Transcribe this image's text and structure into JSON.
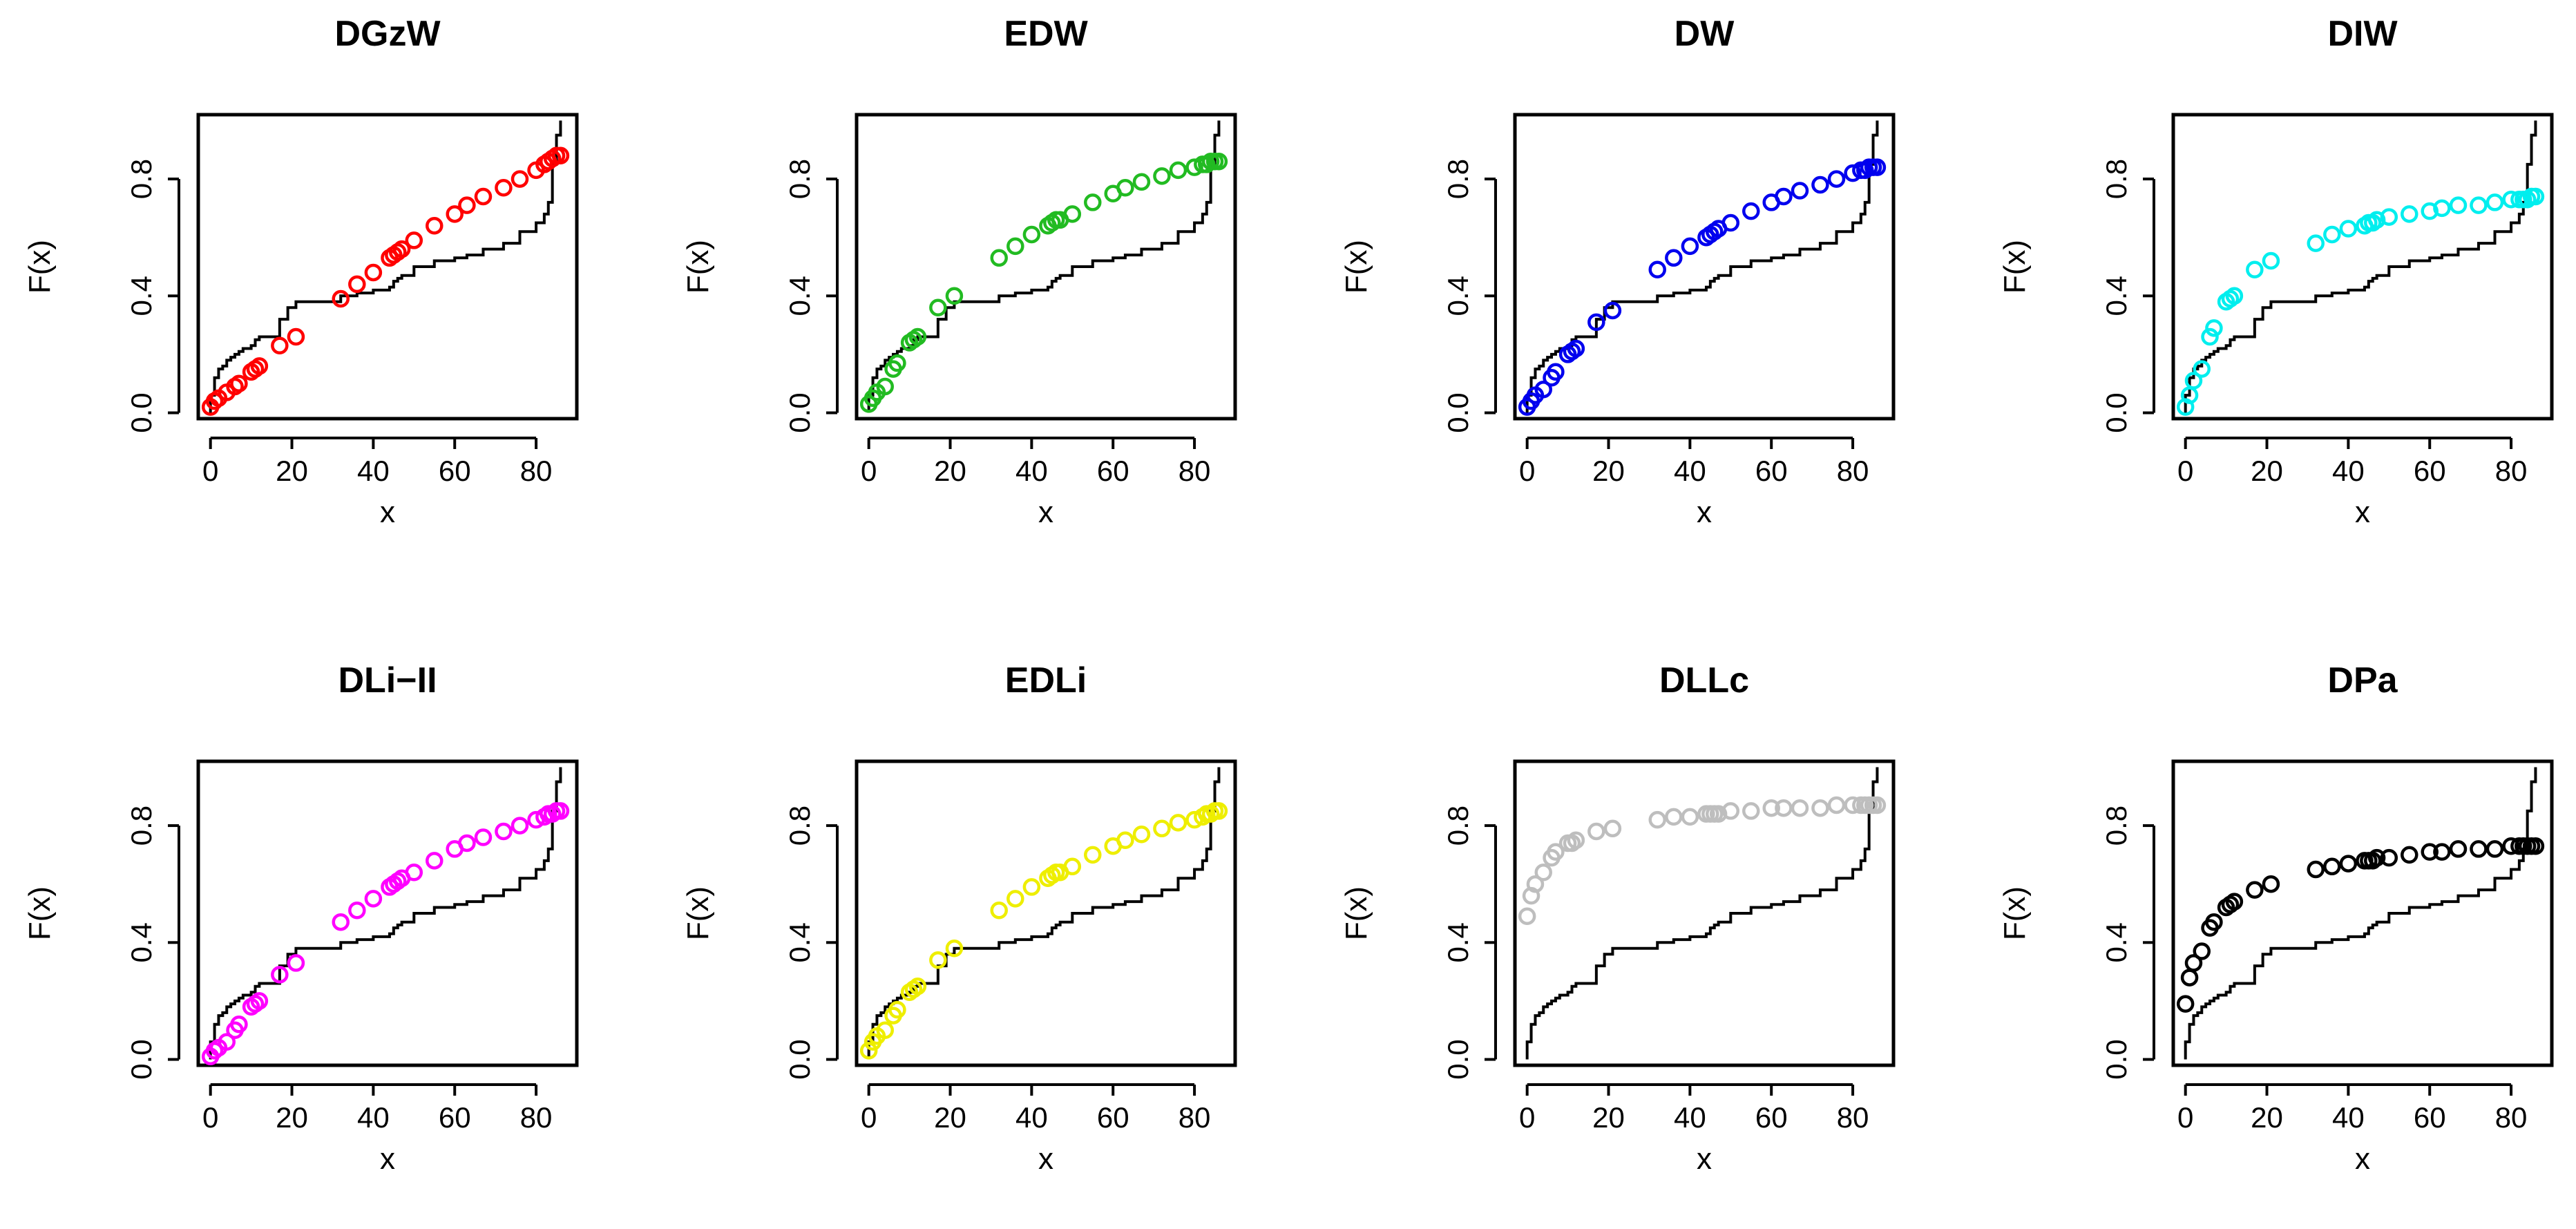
{
  "ecdf": {
    "x": [
      0,
      0,
      1,
      1,
      2,
      3,
      4,
      5,
      6,
      7,
      8,
      10,
      11,
      12,
      17,
      19,
      21,
      32,
      36,
      40,
      44,
      45,
      46,
      47,
      50,
      55,
      60,
      63,
      67,
      72,
      76,
      80,
      82,
      83,
      84,
      85,
      86
    ],
    "F": [
      0.03,
      0.06,
      0.09,
      0.12,
      0.15,
      0.16,
      0.18,
      0.19,
      0.2,
      0.21,
      0.22,
      0.23,
      0.25,
      0.26,
      0.32,
      0.36,
      0.38,
      0.4,
      0.41,
      0.42,
      0.43,
      0.45,
      0.46,
      0.47,
      0.5,
      0.52,
      0.53,
      0.54,
      0.56,
      0.58,
      0.62,
      0.65,
      0.68,
      0.72,
      0.85,
      0.95,
      1.0
    ],
    "color": "#000000"
  },
  "chart_data": [
    {
      "type": "scatter",
      "title": "DGzW",
      "xlabel": "x",
      "ylabel": "F(x)",
      "xlim": [
        -3,
        90
      ],
      "ylim": [
        -0.02,
        1.02
      ],
      "xticks": [
        "0",
        "20",
        "40",
        "60",
        "80"
      ],
      "yticks": [
        "0.0",
        "0.4",
        "0.8"
      ],
      "color": "#ff0000",
      "x": [
        0,
        1,
        2,
        4,
        6,
        7,
        10,
        11,
        12,
        17,
        21,
        32,
        36,
        40,
        44,
        45,
        46,
        47,
        50,
        55,
        60,
        63,
        67,
        72,
        76,
        80,
        82,
        83,
        84,
        85,
        86
      ],
      "y": [
        0.02,
        0.04,
        0.05,
        0.07,
        0.09,
        0.1,
        0.14,
        0.15,
        0.16,
        0.23,
        0.26,
        0.39,
        0.44,
        0.48,
        0.53,
        0.54,
        0.55,
        0.56,
        0.59,
        0.64,
        0.68,
        0.71,
        0.74,
        0.77,
        0.8,
        0.83,
        0.85,
        0.86,
        0.87,
        0.88,
        0.88
      ]
    },
    {
      "type": "scatter",
      "title": "EDW",
      "xlabel": "x",
      "ylabel": "F(x)",
      "xlim": [
        -3,
        90
      ],
      "ylim": [
        -0.02,
        1.02
      ],
      "xticks": [
        "0",
        "20",
        "40",
        "60",
        "80"
      ],
      "yticks": [
        "0.0",
        "0.4",
        "0.8"
      ],
      "color": "#22bb22",
      "x": [
        0,
        1,
        2,
        4,
        6,
        7,
        10,
        11,
        12,
        17,
        21,
        32,
        36,
        40,
        44,
        45,
        46,
        47,
        50,
        55,
        60,
        63,
        67,
        72,
        76,
        80,
        82,
        83,
        84,
        85,
        86
      ],
      "y": [
        0.03,
        0.05,
        0.07,
        0.09,
        0.15,
        0.17,
        0.24,
        0.25,
        0.26,
        0.36,
        0.4,
        0.53,
        0.57,
        0.61,
        0.64,
        0.65,
        0.66,
        0.66,
        0.68,
        0.72,
        0.75,
        0.77,
        0.79,
        0.81,
        0.83,
        0.84,
        0.85,
        0.85,
        0.86,
        0.86,
        0.86
      ]
    },
    {
      "type": "scatter",
      "title": "DW",
      "xlabel": "x",
      "ylabel": "F(x)",
      "xlim": [
        -3,
        90
      ],
      "ylim": [
        -0.02,
        1.02
      ],
      "xticks": [
        "0",
        "20",
        "40",
        "60",
        "80"
      ],
      "yticks": [
        "0.0",
        "0.4",
        "0.8"
      ],
      "color": "#0000ee",
      "x": [
        0,
        1,
        2,
        4,
        6,
        7,
        10,
        11,
        12,
        17,
        21,
        32,
        36,
        40,
        44,
        45,
        46,
        47,
        50,
        55,
        60,
        63,
        67,
        72,
        76,
        80,
        82,
        83,
        84,
        85,
        86
      ],
      "y": [
        0.02,
        0.04,
        0.06,
        0.08,
        0.12,
        0.14,
        0.2,
        0.21,
        0.22,
        0.31,
        0.35,
        0.49,
        0.53,
        0.57,
        0.6,
        0.61,
        0.62,
        0.63,
        0.65,
        0.69,
        0.72,
        0.74,
        0.76,
        0.78,
        0.8,
        0.82,
        0.83,
        0.83,
        0.84,
        0.84,
        0.84
      ]
    },
    {
      "type": "scatter",
      "title": "DIW",
      "xlabel": "x",
      "ylabel": "F(x)",
      "xlim": [
        -3,
        90
      ],
      "ylim": [
        -0.02,
        1.02
      ],
      "xticks": [
        "0",
        "20",
        "40",
        "60",
        "80"
      ],
      "yticks": [
        "0.0",
        "0.4",
        "0.8"
      ],
      "color": "#00eeee",
      "x": [
        0,
        1,
        2,
        4,
        6,
        7,
        10,
        11,
        12,
        17,
        21,
        32,
        36,
        40,
        44,
        45,
        46,
        47,
        50,
        55,
        60,
        63,
        67,
        72,
        76,
        80,
        82,
        83,
        84,
        85,
        86
      ],
      "y": [
        0.02,
        0.06,
        0.11,
        0.15,
        0.26,
        0.29,
        0.38,
        0.39,
        0.4,
        0.49,
        0.52,
        0.58,
        0.61,
        0.63,
        0.64,
        0.65,
        0.65,
        0.66,
        0.67,
        0.68,
        0.69,
        0.7,
        0.71,
        0.71,
        0.72,
        0.73,
        0.73,
        0.73,
        0.73,
        0.74,
        0.74
      ]
    },
    {
      "type": "scatter",
      "title": "DLi−II",
      "xlabel": "x",
      "ylabel": "F(x)",
      "xlim": [
        -3,
        90
      ],
      "ylim": [
        -0.02,
        1.02
      ],
      "xticks": [
        "0",
        "20",
        "40",
        "60",
        "80"
      ],
      "yticks": [
        "0.0",
        "0.4",
        "0.8"
      ],
      "color": "#ff00ff",
      "x": [
        0,
        1,
        2,
        4,
        6,
        7,
        10,
        11,
        12,
        17,
        21,
        32,
        36,
        40,
        44,
        45,
        46,
        47,
        50,
        55,
        60,
        63,
        67,
        72,
        76,
        80,
        82,
        83,
        84,
        85,
        86
      ],
      "y": [
        0.01,
        0.03,
        0.04,
        0.06,
        0.1,
        0.12,
        0.18,
        0.19,
        0.2,
        0.29,
        0.33,
        0.47,
        0.51,
        0.55,
        0.59,
        0.6,
        0.61,
        0.62,
        0.64,
        0.68,
        0.72,
        0.74,
        0.76,
        0.78,
        0.8,
        0.82,
        0.83,
        0.84,
        0.84,
        0.85,
        0.85
      ]
    },
    {
      "type": "scatter",
      "title": "EDLi",
      "xlabel": "x",
      "ylabel": "F(x)",
      "xlim": [
        -3,
        90
      ],
      "ylim": [
        -0.02,
        1.02
      ],
      "xticks": [
        "0",
        "20",
        "40",
        "60",
        "80"
      ],
      "yticks": [
        "0.0",
        "0.4",
        "0.8"
      ],
      "color": "#eeee00",
      "x": [
        0,
        1,
        2,
        4,
        6,
        7,
        10,
        11,
        12,
        17,
        21,
        32,
        36,
        40,
        44,
        45,
        46,
        47,
        50,
        55,
        60,
        63,
        67,
        72,
        76,
        80,
        82,
        83,
        84,
        85,
        86
      ],
      "y": [
        0.03,
        0.06,
        0.08,
        0.1,
        0.15,
        0.17,
        0.23,
        0.24,
        0.25,
        0.34,
        0.38,
        0.51,
        0.55,
        0.59,
        0.62,
        0.63,
        0.64,
        0.64,
        0.66,
        0.7,
        0.73,
        0.75,
        0.77,
        0.79,
        0.81,
        0.82,
        0.83,
        0.84,
        0.84,
        0.85,
        0.85
      ]
    },
    {
      "type": "scatter",
      "title": "DLLc",
      "xlabel": "x",
      "ylabel": "F(x)",
      "xlim": [
        -3,
        90
      ],
      "ylim": [
        -0.02,
        1.02
      ],
      "xticks": [
        "0",
        "20",
        "40",
        "60",
        "80"
      ],
      "yticks": [
        "0.0",
        "0.4",
        "0.8"
      ],
      "color": "#bebebe",
      "x": [
        0,
        1,
        2,
        4,
        6,
        7,
        10,
        11,
        12,
        17,
        21,
        32,
        36,
        40,
        44,
        45,
        46,
        47,
        50,
        55,
        60,
        63,
        67,
        72,
        76,
        80,
        82,
        83,
        84,
        85,
        86
      ],
      "y": [
        0.49,
        0.56,
        0.6,
        0.64,
        0.69,
        0.71,
        0.74,
        0.74,
        0.75,
        0.78,
        0.79,
        0.82,
        0.83,
        0.83,
        0.84,
        0.84,
        0.84,
        0.84,
        0.85,
        0.85,
        0.86,
        0.86,
        0.86,
        0.86,
        0.87,
        0.87,
        0.87,
        0.87,
        0.87,
        0.87,
        0.87
      ]
    },
    {
      "type": "scatter",
      "title": "DPa",
      "xlabel": "x",
      "ylabel": "F(x)",
      "xlim": [
        -3,
        90
      ],
      "ylim": [
        -0.02,
        1.02
      ],
      "xticks": [
        "0",
        "20",
        "40",
        "60",
        "80"
      ],
      "yticks": [
        "0.0",
        "0.4",
        "0.8"
      ],
      "color": "#000000",
      "x": [
        0,
        1,
        2,
        4,
        6,
        7,
        10,
        11,
        12,
        17,
        21,
        32,
        36,
        40,
        44,
        45,
        46,
        47,
        50,
        55,
        60,
        63,
        67,
        72,
        76,
        80,
        82,
        83,
        84,
        85,
        86
      ],
      "y": [
        0.19,
        0.28,
        0.33,
        0.37,
        0.45,
        0.47,
        0.52,
        0.53,
        0.54,
        0.58,
        0.6,
        0.65,
        0.66,
        0.67,
        0.68,
        0.68,
        0.68,
        0.69,
        0.69,
        0.7,
        0.71,
        0.71,
        0.72,
        0.72,
        0.72,
        0.73,
        0.73,
        0.73,
        0.73,
        0.73,
        0.73
      ]
    }
  ]
}
